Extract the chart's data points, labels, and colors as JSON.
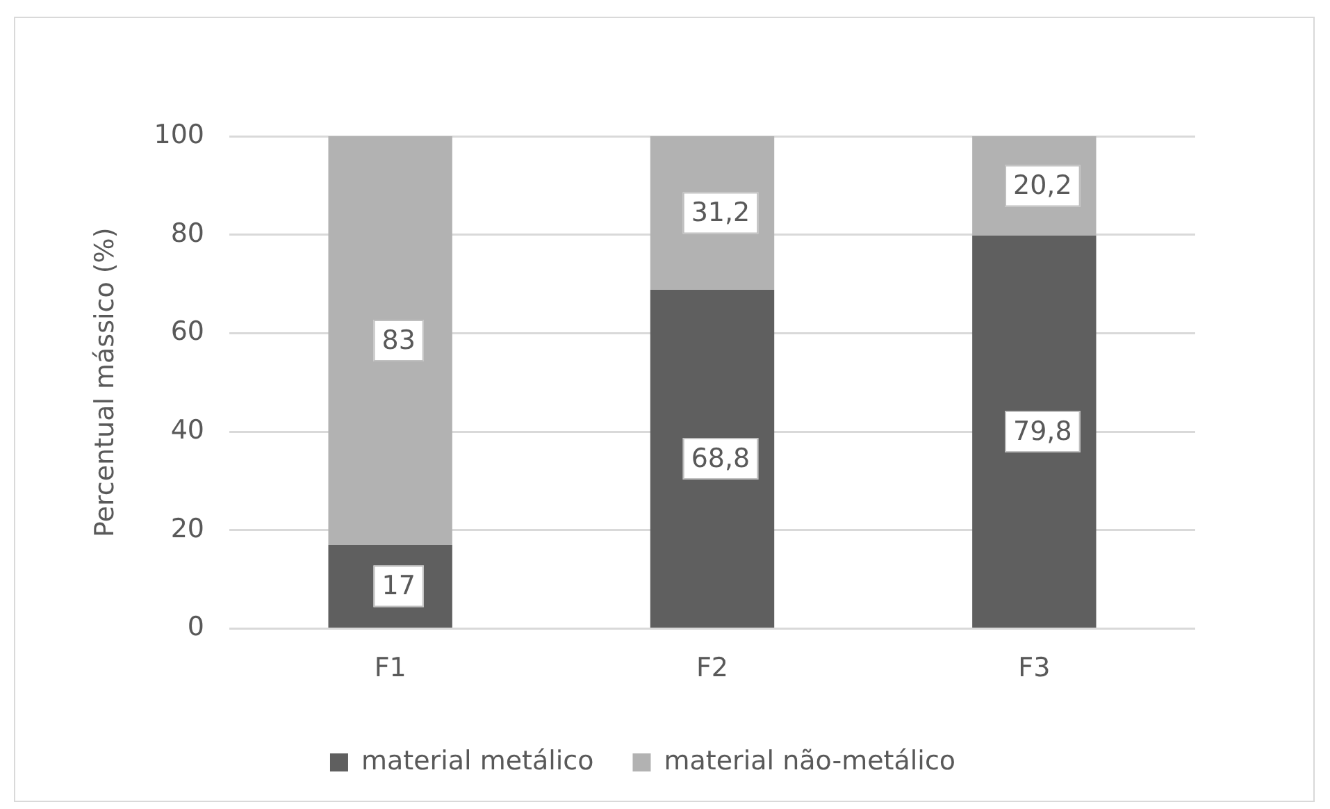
{
  "chart_data": {
    "type": "bar",
    "stacked": true,
    "ylabel": "Percentual mássico (%)",
    "categories": [
      "F1",
      "F2",
      "F3"
    ],
    "series": [
      {
        "name": "material metálico",
        "color": "#5f5f5f",
        "values": [
          17,
          68.8,
          79.8
        ],
        "value_labels": [
          "17",
          "68,8",
          "79,8"
        ]
      },
      {
        "name": "material não-metálico",
        "color": "#b2b2b2",
        "values": [
          83,
          31.2,
          20.2
        ],
        "value_labels": [
          "83",
          "31,2",
          "20,2"
        ]
      }
    ],
    "ylim": [
      0,
      100
    ],
    "yticks": [
      0,
      20,
      40,
      60,
      80,
      100
    ],
    "grid": "y",
    "legend": "bottom"
  }
}
